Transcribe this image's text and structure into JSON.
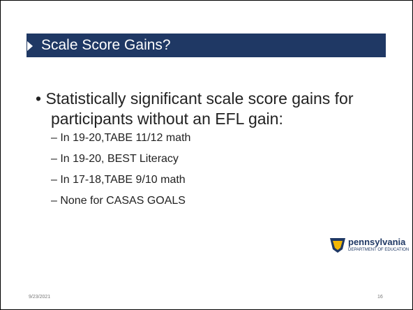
{
  "slide": {
    "title": "Scale Score Gains?",
    "bullet": "Statistically significant scale score gains for participants without an EFL gain:",
    "subbullets": [
      "– In 19-20,TABE 11/12 math",
      "– In 19-20, BEST Literacy",
      "– In 17-18,TABE 9/10 math",
      "– None for CASAS GOALS"
    ],
    "logo": {
      "name": "pennsylvania",
      "department": "DEPARTMENT OF EDUCATION"
    },
    "date": "9/23/2021",
    "page": "16"
  }
}
